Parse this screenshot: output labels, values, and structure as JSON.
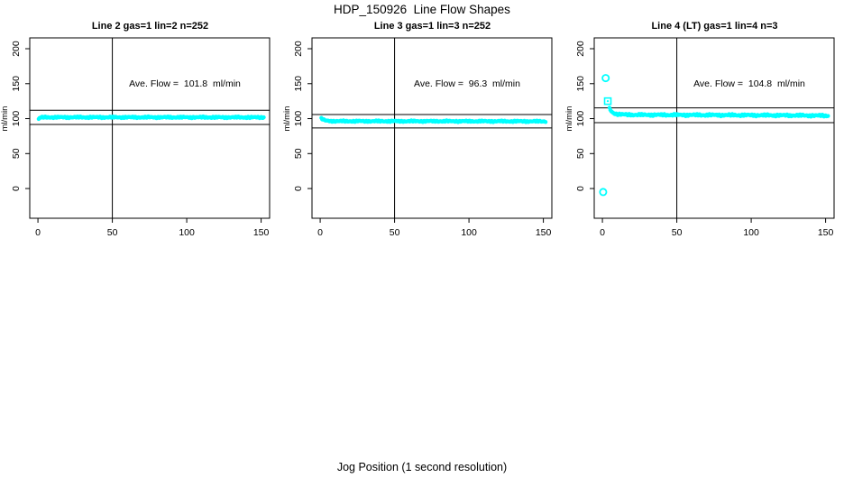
{
  "figure": {
    "title": "HDP_150926  Line Flow Shapes",
    "xlabel": "Jog Position (1 second resolution)",
    "ylabel": "ml/min",
    "point_color": "#00ffff",
    "axis_color": "#000000"
  },
  "chart_data": [
    {
      "type": "scatter",
      "title": "Line 2 gas=1 lin=2 n=252",
      "annotation": "Ave. Flow =  101.8  ml/min",
      "ave_flow_ml_min": 101.8,
      "n": 252,
      "ylabel": "ml/min",
      "x_ticks": [
        0,
        50,
        100,
        150
      ],
      "y_ticks": [
        0,
        50,
        100,
        150,
        200
      ],
      "xlim": [
        -5.5,
        155.7
      ],
      "ylim": [
        -42.5,
        215.5
      ],
      "vline_x": 50,
      "hlines": [
        112.0,
        91.6
      ],
      "series": [
        {
          "name": "flow",
          "step": 0.55,
          "noise": 1.2,
          "anchors": [
            [
              0.5,
              99.2
            ],
            [
              1.3,
              101.2
            ],
            [
              2.5,
              101.7
            ],
            [
              5,
              101.9
            ],
            [
              80,
              101.9
            ],
            [
              150,
              101.8
            ],
            [
              152,
              101.8
            ]
          ]
        }
      ],
      "outliers": []
    },
    {
      "type": "scatter",
      "title": "Line 3 gas=1 lin=3 n=252",
      "annotation": "Ave. Flow =  96.3  ml/min",
      "ave_flow_ml_min": 96.3,
      "n": 252,
      "ylabel": "ml/min",
      "x_ticks": [
        0,
        50,
        100,
        150
      ],
      "y_ticks": [
        0,
        50,
        100,
        150,
        200
      ],
      "xlim": [
        -5.5,
        155.7
      ],
      "ylim": [
        -42.5,
        215.5
      ],
      "vline_x": 50,
      "hlines": [
        105.9,
        86.7
      ],
      "series": [
        {
          "name": "flow",
          "step": 0.55,
          "noise": 1.1,
          "anchors": [
            [
              0.8,
              100.2
            ],
            [
              1.6,
              99.0
            ],
            [
              2.5,
              98.0
            ],
            [
              3.5,
              97.3
            ],
            [
              5,
              96.8
            ],
            [
              8,
              96.4
            ],
            [
              15,
              96.3
            ],
            [
              80,
              96.3
            ],
            [
              150,
              96.1
            ],
            [
              152,
              96.1
            ]
          ]
        }
      ],
      "outliers": []
    },
    {
      "type": "scatter",
      "title": "Line 4 (LT) gas=1 lin=4 n=3",
      "annotation": "Ave. Flow =  104.8  ml/min",
      "ave_flow_ml_min": 104.8,
      "n": 3,
      "ylabel": "ml/min",
      "x_ticks": [
        0,
        50,
        100,
        150
      ],
      "y_ticks": [
        0,
        50,
        100,
        150,
        200
      ],
      "xlim": [
        -5.5,
        155.7
      ],
      "ylim": [
        -42.5,
        215.5
      ],
      "vline_x": 50,
      "hlines": [
        115.3,
        94.3
      ],
      "series": [
        {
          "name": "flow",
          "step": 0.55,
          "noise": 1.5,
          "anchors": [
            [
              4.8,
              114.5
            ],
            [
              5.5,
              112.0
            ],
            [
              6.5,
              109.5
            ],
            [
              7.5,
              108.0
            ],
            [
              9,
              107.0
            ],
            [
              11,
              106.2
            ],
            [
              15,
              105.7
            ],
            [
              25,
              105.4
            ],
            [
              60,
              105.2
            ],
            [
              100,
              104.9
            ],
            [
              130,
              104.6
            ],
            [
              152,
              104.2
            ]
          ]
        }
      ],
      "outliers": [
        {
          "x": 2.2,
          "y": 158,
          "marker": "open-circle"
        },
        {
          "x": 3.6,
          "y": 125,
          "marker": "open-square-dot"
        },
        {
          "x": 0.5,
          "y": -5,
          "marker": "open-circle"
        }
      ]
    }
  ]
}
